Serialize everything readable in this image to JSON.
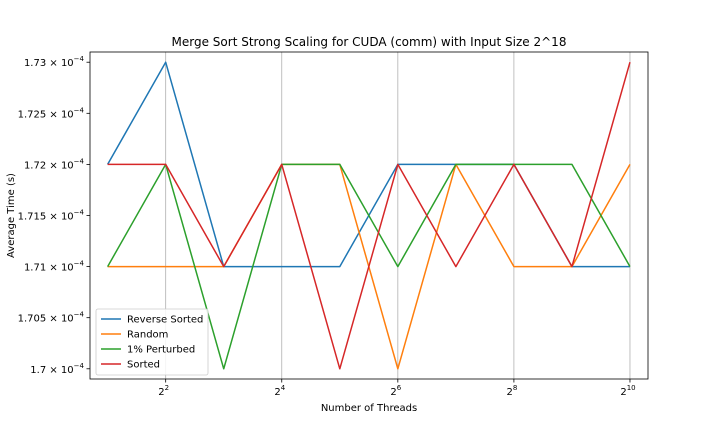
{
  "chart_data": {
    "type": "line",
    "title": "Merge Sort Strong Scaling for CUDA (comm) with Input Size 2^18",
    "xlabel": "Number of Threads",
    "ylabel": "Average Time (s)",
    "x": [
      2,
      4,
      8,
      16,
      32,
      64,
      128,
      256,
      512,
      1024
    ],
    "x_scale": "log2",
    "x_ticks": [
      {
        "value": 4,
        "base": "2",
        "exp": "2"
      },
      {
        "value": 16,
        "base": "2",
        "exp": "4"
      },
      {
        "value": 64,
        "base": "2",
        "exp": "6"
      },
      {
        "value": 256,
        "base": "2",
        "exp": "8"
      },
      {
        "value": 1024,
        "base": "2",
        "exp": "10"
      }
    ],
    "y_ticks": [
      {
        "value": 0.00017,
        "mant": "1.7 × 10",
        "exp": "−4"
      },
      {
        "value": 0.0001705,
        "mant": "1.705 × 10",
        "exp": "−4"
      },
      {
        "value": 0.000171,
        "mant": "1.71 × 10",
        "exp": "−4"
      },
      {
        "value": 0.0001715,
        "mant": "1.715 × 10",
        "exp": "−4"
      },
      {
        "value": 0.000172,
        "mant": "1.72 × 10",
        "exp": "−4"
      },
      {
        "value": 0.0001725,
        "mant": "1.725 × 10",
        "exp": "−4"
      },
      {
        "value": 0.000173,
        "mant": "1.73 × 10",
        "exp": "−4"
      }
    ],
    "xlim": [
      1.62,
      1270
    ],
    "ylim": [
      0.0001699,
      0.0001731
    ],
    "grid": "x-major",
    "legend": "lower-left",
    "series": [
      {
        "name": "Reverse Sorted",
        "color": "#1f77b4",
        "values": [
          0.000172,
          0.000173,
          0.000171,
          0.000171,
          0.000171,
          0.000172,
          0.000172,
          0.000172,
          0.000171,
          0.000171
        ]
      },
      {
        "name": "Random",
        "color": "#ff7f0e",
        "values": [
          0.000171,
          0.000171,
          0.000171,
          0.000172,
          0.000172,
          0.00017,
          0.000172,
          0.000171,
          0.000171,
          0.000172
        ]
      },
      {
        "name": "1% Perturbed",
        "color": "#2ca02c",
        "values": [
          0.000171,
          0.000172,
          0.00017,
          0.000172,
          0.000172,
          0.000171,
          0.000172,
          0.000172,
          0.000172,
          0.000171
        ]
      },
      {
        "name": "Sorted",
        "color": "#d62728",
        "values": [
          0.000172,
          0.000172,
          0.000171,
          0.000172,
          0.00017,
          0.000172,
          0.000171,
          0.000172,
          0.000171,
          0.000173
        ]
      }
    ]
  }
}
